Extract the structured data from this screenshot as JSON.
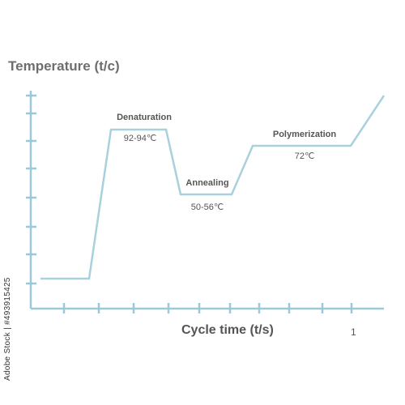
{
  "diagram": {
    "y_axis_label": "Temperature (t/c)",
    "x_axis_label": "Cycle time (t/s)",
    "x_tick_label": "1",
    "stages": [
      {
        "name": "Denaturation",
        "temperature": "92-94℃"
      },
      {
        "name": "Annealing",
        "temperature": "50-56℃"
      },
      {
        "name": "Polymerization",
        "temperature": "72℃"
      }
    ],
    "line_color": "#a9d0dd",
    "axis_color": "#9cc9d7",
    "side_text": "Adobe Stock | #493915425"
  }
}
